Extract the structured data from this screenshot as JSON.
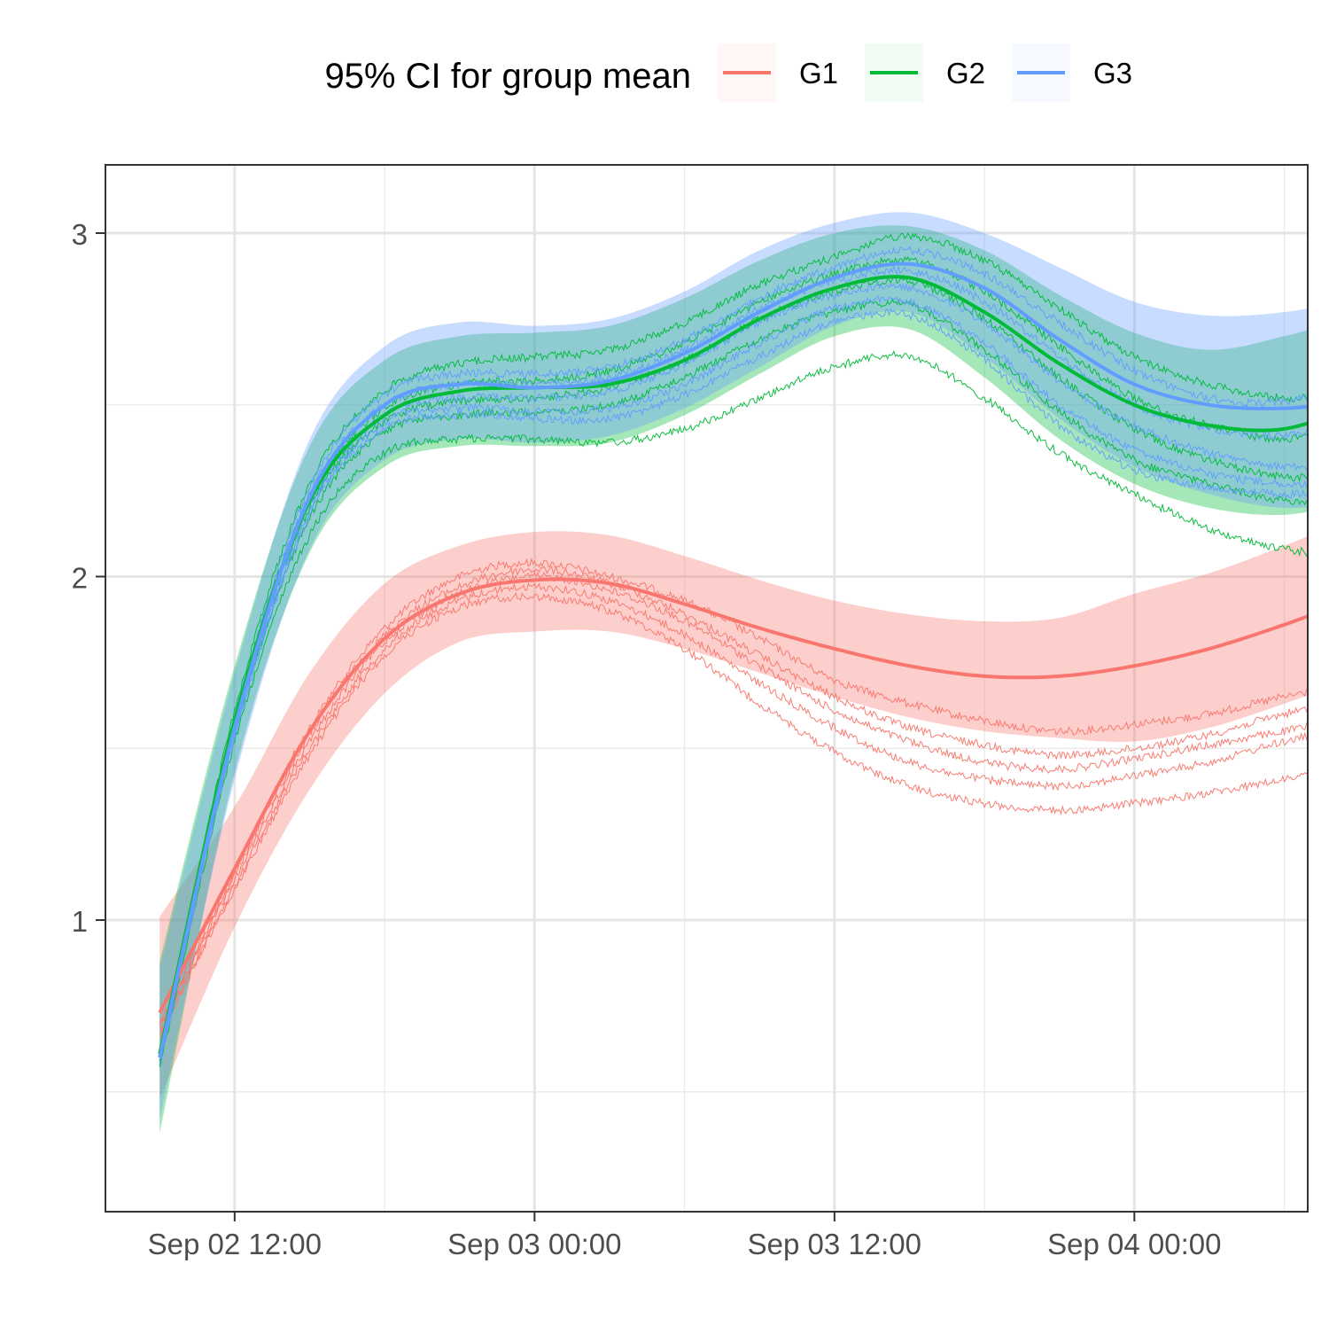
{
  "chart_data": {
    "type": "line",
    "legend": {
      "title": "95% CI for group mean",
      "position": "top",
      "entries": [
        "G1",
        "G2",
        "G3"
      ]
    },
    "x_axis": {
      "type": "datetime",
      "range": [
        "2025-09-02 08:00",
        "2025-09-04 08:00"
      ],
      "ticks": [
        "2025-09-02 12:00",
        "2025-09-03 00:00",
        "2025-09-03 12:00",
        "2025-09-04 00:00"
      ],
      "tick_labels": [
        "Sep 02 12:00",
        "Sep 03 00:00",
        "Sep 03 12:00",
        "Sep 04 00:00"
      ],
      "minor_ticks": [
        "2025-09-02 18:00",
        "2025-09-03 06:00",
        "2025-09-03 18:00",
        "2025-09-04 06:00"
      ]
    },
    "y_axis": {
      "ylim": [
        0.3,
        3.2
      ],
      "ticks": [
        1,
        2,
        3
      ],
      "tick_labels": [
        "1",
        "2",
        "3"
      ],
      "minor_ticks": [
        0.5,
        1.5,
        2.5
      ]
    },
    "grid": true,
    "times": [
      "2025-09-02 09:00",
      "2025-09-02 12:00",
      "2025-09-02 15:00",
      "2025-09-02 18:00",
      "2025-09-02 21:00",
      "2025-09-03 00:00",
      "2025-09-03 03:00",
      "2025-09-03 06:00",
      "2025-09-03 09:00",
      "2025-09-03 12:00",
      "2025-09-03 15:00",
      "2025-09-03 18:00",
      "2025-09-03 21:00",
      "2025-09-04 00:00",
      "2025-09-04 03:00",
      "2025-09-04 06:00",
      "2025-09-04 09:00"
    ],
    "series": [
      {
        "name": "G1",
        "color": "#F8766D",
        "mean": [
          0.73,
          1.15,
          1.55,
          1.82,
          1.95,
          1.99,
          1.98,
          1.92,
          1.85,
          1.79,
          1.74,
          1.71,
          1.71,
          1.74,
          1.79,
          1.86,
          1.94
        ],
        "lower": [
          0.48,
          0.98,
          1.38,
          1.66,
          1.81,
          1.84,
          1.84,
          1.79,
          1.72,
          1.65,
          1.59,
          1.55,
          1.53,
          1.52,
          1.56,
          1.63,
          1.71
        ],
        "upper": [
          1.01,
          1.33,
          1.72,
          1.98,
          2.09,
          2.13,
          2.12,
          2.06,
          1.99,
          1.93,
          1.89,
          1.87,
          1.88,
          1.95,
          2.01,
          2.09,
          2.18
        ],
        "samples": [
          [
            0.7,
            1.14,
            1.56,
            1.85,
            2.0,
            2.04,
            2.0,
            1.93,
            1.82,
            1.7,
            1.63,
            1.58,
            1.55,
            1.57,
            1.6,
            1.65,
            1.69
          ],
          [
            0.67,
            1.13,
            1.54,
            1.83,
            1.97,
            2.02,
            1.98,
            1.89,
            1.77,
            1.65,
            1.56,
            1.51,
            1.48,
            1.5,
            1.54,
            1.6,
            1.64
          ],
          [
            0.69,
            1.12,
            1.52,
            1.81,
            1.95,
            2.0,
            1.96,
            1.87,
            1.74,
            1.61,
            1.52,
            1.46,
            1.44,
            1.47,
            1.51,
            1.55,
            1.59
          ],
          [
            0.66,
            1.1,
            1.5,
            1.79,
            1.93,
            1.97,
            1.93,
            1.83,
            1.69,
            1.56,
            1.46,
            1.41,
            1.39,
            1.42,
            1.46,
            1.52,
            1.57
          ],
          [
            0.68,
            1.09,
            1.48,
            1.77,
            1.91,
            1.94,
            1.9,
            1.79,
            1.63,
            1.49,
            1.39,
            1.34,
            1.32,
            1.34,
            1.37,
            1.41,
            1.46
          ]
        ]
      },
      {
        "name": "G2",
        "color": "#00BA38",
        "mean": [
          0.61,
          1.58,
          2.22,
          2.47,
          2.54,
          2.55,
          2.56,
          2.63,
          2.75,
          2.84,
          2.87,
          2.77,
          2.62,
          2.5,
          2.44,
          2.43,
          2.5
        ],
        "lower": [
          0.38,
          1.43,
          2.07,
          2.32,
          2.38,
          2.38,
          2.39,
          2.47,
          2.59,
          2.7,
          2.72,
          2.58,
          2.4,
          2.27,
          2.2,
          2.18,
          2.22
        ],
        "upper": [
          0.88,
          1.74,
          2.38,
          2.63,
          2.7,
          2.71,
          2.73,
          2.81,
          2.92,
          3.0,
          3.02,
          2.95,
          2.82,
          2.71,
          2.66,
          2.7,
          2.76
        ],
        "samples": [
          [
            0.59,
            1.61,
            2.27,
            2.54,
            2.62,
            2.64,
            2.66,
            2.74,
            2.85,
            2.93,
            2.99,
            2.92,
            2.78,
            2.64,
            2.56,
            2.52,
            2.54
          ],
          [
            0.61,
            1.59,
            2.23,
            2.49,
            2.56,
            2.57,
            2.6,
            2.68,
            2.8,
            2.88,
            2.92,
            2.83,
            2.67,
            2.52,
            2.44,
            2.4,
            2.44
          ],
          [
            0.58,
            1.57,
            2.2,
            2.45,
            2.51,
            2.52,
            2.55,
            2.63,
            2.75,
            2.83,
            2.86,
            2.75,
            2.58,
            2.43,
            2.34,
            2.29,
            2.3
          ],
          [
            0.6,
            1.55,
            2.17,
            2.42,
            2.47,
            2.48,
            2.5,
            2.58,
            2.69,
            2.77,
            2.79,
            2.66,
            2.48,
            2.34,
            2.27,
            2.22,
            2.21
          ],
          [
            0.57,
            1.52,
            2.12,
            2.36,
            2.4,
            2.4,
            2.39,
            2.43,
            2.52,
            2.61,
            2.64,
            2.52,
            2.36,
            2.24,
            2.14,
            2.08,
            2.06
          ]
        ]
      },
      {
        "name": "G3",
        "color": "#619CFF",
        "mean": [
          0.6,
          1.56,
          2.23,
          2.5,
          2.56,
          2.55,
          2.57,
          2.65,
          2.77,
          2.87,
          2.91,
          2.84,
          2.69,
          2.56,
          2.5,
          2.49,
          2.51
        ],
        "lower": [
          0.42,
          1.41,
          2.08,
          2.34,
          2.4,
          2.39,
          2.41,
          2.49,
          2.61,
          2.73,
          2.77,
          2.64,
          2.46,
          2.32,
          2.24,
          2.2,
          2.22
        ],
        "upper": [
          0.86,
          1.72,
          2.4,
          2.67,
          2.74,
          2.73,
          2.75,
          2.83,
          2.95,
          3.03,
          3.06,
          3.0,
          2.9,
          2.8,
          2.76,
          2.77,
          2.81
        ],
        "samples": [
          [
            0.6,
            1.59,
            2.26,
            2.53,
            2.59,
            2.59,
            2.61,
            2.69,
            2.81,
            2.9,
            2.95,
            2.88,
            2.74,
            2.6,
            2.52,
            2.51,
            2.56
          ],
          [
            0.62,
            1.57,
            2.24,
            2.5,
            2.56,
            2.56,
            2.58,
            2.66,
            2.78,
            2.86,
            2.89,
            2.8,
            2.64,
            2.5,
            2.43,
            2.41,
            2.44
          ],
          [
            0.59,
            1.55,
            2.21,
            2.47,
            2.52,
            2.52,
            2.54,
            2.62,
            2.74,
            2.82,
            2.84,
            2.74,
            2.57,
            2.44,
            2.36,
            2.32,
            2.33
          ],
          [
            0.61,
            1.54,
            2.19,
            2.45,
            2.49,
            2.48,
            2.49,
            2.56,
            2.68,
            2.78,
            2.8,
            2.68,
            2.5,
            2.37,
            2.3,
            2.27,
            2.28
          ],
          [
            0.58,
            1.53,
            2.18,
            2.43,
            2.47,
            2.46,
            2.46,
            2.53,
            2.64,
            2.74,
            2.76,
            2.63,
            2.44,
            2.31,
            2.26,
            2.24,
            2.25
          ]
        ]
      }
    ]
  }
}
